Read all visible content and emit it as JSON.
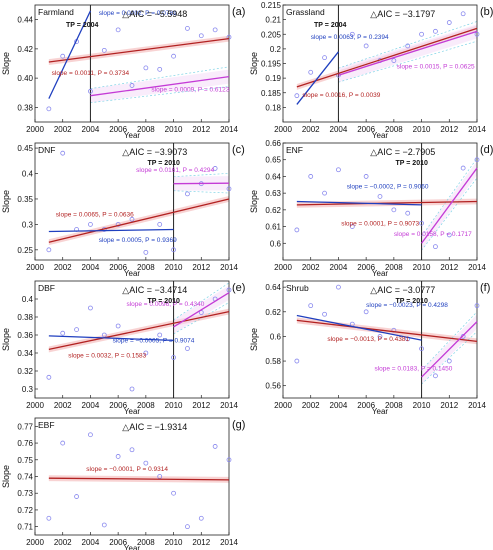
{
  "colors": {
    "fit": "#b22222",
    "ci": "#f4b6b6",
    "pre": "#1f3fbf",
    "post": "#c43bd6",
    "point": "#8888ee",
    "tp": "#222222",
    "ciDash": "#7fd3e6"
  },
  "chart_data": [
    {
      "panel": "(a)",
      "type": "scatter",
      "title": "Farmland",
      "aic": "△AIC = −5.5948",
      "tp_label": "TP = 2004",
      "tp": 2004,
      "xlabel": "Year",
      "ylabel": "Slope",
      "xlim": [
        2000,
        2014
      ],
      "ylim": [
        0.37,
        0.45
      ],
      "xticks": [
        "2000",
        "2002",
        "2004",
        "2006",
        "2008",
        "2010",
        "2012",
        "2014"
      ],
      "yticks": [
        "0.38",
        "0.40",
        "0.42",
        "0.44"
      ],
      "ytick_vals": [
        0.38,
        0.4,
        0.42,
        0.44
      ],
      "points": [
        [
          2001,
          0.379
        ],
        [
          2002,
          0.415
        ],
        [
          2003,
          0.425
        ],
        [
          2004,
          0.391
        ],
        [
          2005,
          0.419
        ],
        [
          2006,
          0.433
        ],
        [
          2007,
          0.395
        ],
        [
          2008,
          0.407
        ],
        [
          2009,
          0.406
        ],
        [
          2010,
          0.415
        ],
        [
          2011,
          0.434
        ],
        [
          2012,
          0.429
        ],
        [
          2013,
          0.433
        ],
        [
          2014,
          0.428
        ]
      ],
      "fit": {
        "x": [
          2001,
          2014
        ],
        "y": [
          0.411,
          0.427
        ],
        "label": "slope = 0.0011, P = 0.3734"
      },
      "pre": {
        "x": [
          2001,
          2004
        ],
        "y": [
          0.386,
          0.446
        ],
        "label": "slope = 0.0202, P = 0.0781"
      },
      "post": {
        "x": [
          2004,
          2014
        ],
        "y": [
          0.388,
          0.401
        ],
        "label": "slope = 0.0009, P = 0.6123"
      }
    },
    {
      "panel": "(b)",
      "type": "scatter",
      "title": "Grassland",
      "aic": "△AIC = −3.1797",
      "tp_label": "TP = 2004",
      "tp": 2004,
      "xlabel": "Year",
      "ylabel": "Slope",
      "xlim": [
        2000,
        2014
      ],
      "ylim": [
        0.175,
        0.215
      ],
      "xticks": [
        "2000",
        "2002",
        "2004",
        "2006",
        "2008",
        "2010",
        "2012",
        "2014"
      ],
      "yticks": [
        "0.18",
        "0.185",
        "0.19",
        "0.195",
        "0.2",
        "0.205",
        "0.21",
        "0.215"
      ],
      "ytick_vals": [
        0.18,
        0.185,
        0.19,
        0.195,
        0.2,
        0.205,
        0.21,
        0.215
      ],
      "points": [
        [
          2001,
          0.184
        ],
        [
          2002,
          0.192
        ],
        [
          2003,
          0.197
        ],
        [
          2004,
          0.191
        ],
        [
          2005,
          0.205
        ],
        [
          2006,
          0.201
        ],
        [
          2007,
          0.196
        ],
        [
          2008,
          0.196
        ],
        [
          2009,
          0.201
        ],
        [
          2010,
          0.205
        ],
        [
          2011,
          0.206
        ],
        [
          2012,
          0.209
        ],
        [
          2013,
          0.212
        ],
        [
          2014,
          0.205
        ]
      ],
      "fit": {
        "x": [
          2001,
          2014
        ],
        "y": [
          0.187,
          0.207
        ],
        "label": "slope = 0.0016, P = 0.0039"
      },
      "pre": {
        "x": [
          2001,
          2004
        ],
        "y": [
          0.181,
          0.199
        ],
        "label": "slope = 0.0063, P = 0.2394"
      },
      "post": {
        "x": [
          2004,
          2014
        ],
        "y": [
          0.191,
          0.206
        ],
        "label": "slope = 0.0015, P = 0.0625"
      }
    },
    {
      "panel": "(c)",
      "type": "scatter",
      "title": "DNF",
      "aic": "△AIC = −3.9073",
      "tp_label": "TP = 2010",
      "tp": 2010,
      "xlabel": "Year",
      "ylabel": "Slope",
      "xlim": [
        2000,
        2014
      ],
      "ylim": [
        0.23,
        0.46
      ],
      "xticks": [
        "2000",
        "2002",
        "2004",
        "2006",
        "2008",
        "2010",
        "2012",
        "2014"
      ],
      "yticks": [
        "0.25",
        "0.3",
        "0.35",
        "0.4",
        "0.45"
      ],
      "ytick_vals": [
        0.25,
        0.3,
        0.35,
        0.4,
        0.45
      ],
      "points": [
        [
          2001,
          0.25
        ],
        [
          2002,
          0.44
        ],
        [
          2003,
          0.29
        ],
        [
          2004,
          0.3
        ],
        [
          2005,
          0.29
        ],
        [
          2006,
          0.3
        ],
        [
          2007,
          0.31
        ],
        [
          2008,
          0.245
        ],
        [
          2009,
          0.3
        ],
        [
          2010,
          0.25
        ],
        [
          2011,
          0.36
        ],
        [
          2012,
          0.38
        ],
        [
          2013,
          0.41
        ],
        [
          2014,
          0.37
        ]
      ],
      "fit": {
        "x": [
          2001,
          2014
        ],
        "y": [
          0.265,
          0.35
        ],
        "label": "slope = 0.0065, P = 0.0636"
      },
      "pre": {
        "x": [
          2001,
          2010
        ],
        "y": [
          0.286,
          0.29
        ],
        "label": "slope = 0.0005, P = 0.9369"
      },
      "post": {
        "x": [
          2010,
          2014
        ],
        "y": [
          0.38,
          0.381
        ],
        "label": "slope = 0.0161, P = 0.4294"
      }
    },
    {
      "panel": "(d)",
      "type": "scatter",
      "title": "ENF",
      "aic": "△AIC = −2.7905",
      "tp_label": "TP = 2010",
      "tp": 2010,
      "xlabel": "Year",
      "ylabel": "Slope",
      "xlim": [
        2000,
        2014
      ],
      "ylim": [
        0.59,
        0.66
      ],
      "xticks": [
        "2000",
        "2002",
        "2004",
        "2006",
        "2008",
        "2010",
        "2012",
        "2014"
      ],
      "yticks": [
        "0.6",
        "0.61",
        "0.62",
        "0.63",
        "0.64",
        "0.65",
        "0.66"
      ],
      "ytick_vals": [
        0.6,
        0.61,
        0.62,
        0.63,
        0.64,
        0.65,
        0.66
      ],
      "points": [
        [
          2001,
          0.608
        ],
        [
          2002,
          0.64
        ],
        [
          2003,
          0.63
        ],
        [
          2004,
          0.644
        ],
        [
          2005,
          0.61
        ],
        [
          2006,
          0.64
        ],
        [
          2007,
          0.628
        ],
        [
          2008,
          0.62
        ],
        [
          2009,
          0.618
        ],
        [
          2010,
          0.612
        ],
        [
          2011,
          0.598
        ],
        [
          2012,
          0.605
        ],
        [
          2013,
          0.645
        ],
        [
          2014,
          0.65
        ]
      ],
      "fit": {
        "x": [
          2001,
          2014
        ],
        "y": [
          0.623,
          0.625
        ],
        "label": "slope = 0.0001, P = 0.9073"
      },
      "pre": {
        "x": [
          2001,
          2010
        ],
        "y": [
          0.625,
          0.623
        ],
        "label": "slope = −0.0002, P = 0.9060"
      },
      "post": {
        "x": [
          2010,
          2014
        ],
        "y": [
          0.6,
          0.645
        ],
        "label": "slope = 0.0158, P = 0.1717"
      }
    },
    {
      "panel": "(e)",
      "type": "scatter",
      "title": "DBF",
      "aic": "△AIC = −3.4714",
      "tp_label": "TP = 2010",
      "tp": 2010,
      "xlabel": "Year",
      "ylabel": "Slope",
      "xlim": [
        2000,
        2014
      ],
      "ylim": [
        0.29,
        0.42
      ],
      "xticks": [
        "2000",
        "2002",
        "2004",
        "2006",
        "2008",
        "2010",
        "2012",
        "2014"
      ],
      "yticks": [
        "0.3",
        "0.32",
        "0.34",
        "0.36",
        "0.38",
        "0.4"
      ],
      "ytick_vals": [
        0.3,
        0.32,
        0.34,
        0.36,
        0.38,
        0.4
      ],
      "points": [
        [
          2001,
          0.313
        ],
        [
          2002,
          0.362
        ],
        [
          2003,
          0.366
        ],
        [
          2004,
          0.39
        ],
        [
          2005,
          0.36
        ],
        [
          2006,
          0.37
        ],
        [
          2007,
          0.3
        ],
        [
          2008,
          0.34
        ],
        [
          2009,
          0.36
        ],
        [
          2010,
          0.335
        ],
        [
          2011,
          0.345
        ],
        [
          2012,
          0.385
        ],
        [
          2013,
          0.4
        ],
        [
          2014,
          0.41
        ]
      ],
      "fit": {
        "x": [
          2001,
          2014
        ],
        "y": [
          0.344,
          0.386
        ],
        "label": "slope = 0.0032, P = 0.1583"
      },
      "pre": {
        "x": [
          2001,
          2010
        ],
        "y": [
          0.359,
          0.354
        ],
        "label": "slope = −0.0005, P = 0.9074"
      },
      "post": {
        "x": [
          2010,
          2014
        ],
        "y": [
          0.369,
          0.407
        ],
        "label": "slope = 0.0096, P = 0.4340"
      }
    },
    {
      "panel": "(f)",
      "type": "scatter",
      "title": "Shrub",
      "aic": "△AIC = −3.0777",
      "tp_label": "TP = 2010",
      "tp": 2010,
      "xlabel": "Year",
      "ylabel": "Slope",
      "xlim": [
        2000,
        2014
      ],
      "ylim": [
        0.55,
        0.645
      ],
      "xticks": [
        "2000",
        "2002",
        "2004",
        "2006",
        "2008",
        "2010",
        "2012",
        "2014"
      ],
      "yticks": [
        "0.56",
        "0.58",
        "0.6",
        "0.62",
        "0.64"
      ],
      "ytick_vals": [
        0.56,
        0.58,
        0.6,
        0.62,
        0.64
      ],
      "points": [
        [
          2001,
          0.58
        ],
        [
          2002,
          0.625
        ],
        [
          2003,
          0.618
        ],
        [
          2004,
          0.64
        ],
        [
          2005,
          0.61
        ],
        [
          2006,
          0.62
        ],
        [
          2007,
          0.6
        ],
        [
          2008,
          0.605
        ],
        [
          2009,
          0.598
        ],
        [
          2010,
          0.59
        ],
        [
          2011,
          0.568
        ],
        [
          2012,
          0.58
        ],
        [
          2013,
          0.6
        ],
        [
          2014,
          0.625
        ]
      ],
      "fit": {
        "x": [
          2001,
          2014
        ],
        "y": [
          0.613,
          0.596
        ],
        "label": "slope = −0.0013, P = 0.4381"
      },
      "pre": {
        "x": [
          2001,
          2010
        ],
        "y": [
          0.617,
          0.597
        ],
        "label": "slope = −0.0023, P = 0.4298"
      },
      "post": {
        "x": [
          2010,
          2014
        ],
        "y": [
          0.567,
          0.612
        ],
        "label": "slope = 0.0183, P = 0.1450"
      }
    },
    {
      "panel": "(g)",
      "type": "scatter",
      "title": "EBF",
      "aic": "△AIC = −1.9314",
      "tp_label": "",
      "tp": null,
      "xlabel": "Year",
      "ylabel": "Slope",
      "xlim": [
        2000,
        2014
      ],
      "ylim": [
        0.705,
        0.775
      ],
      "xticks": [
        "2000",
        "2002",
        "2004",
        "2006",
        "2008",
        "2010",
        "2012",
        "2014"
      ],
      "yticks": [
        "0.71",
        "0.72",
        "0.73",
        "0.74",
        "0.75",
        "0.76",
        "0.77"
      ],
      "ytick_vals": [
        0.71,
        0.72,
        0.73,
        0.74,
        0.75,
        0.76,
        0.77
      ],
      "points": [
        [
          2001,
          0.715
        ],
        [
          2002,
          0.76
        ],
        [
          2003,
          0.728
        ],
        [
          2004,
          0.765
        ],
        [
          2005,
          0.711
        ],
        [
          2006,
          0.752
        ],
        [
          2007,
          0.756
        ],
        [
          2008,
          0.748
        ],
        [
          2009,
          0.74
        ],
        [
          2010,
          0.73
        ],
        [
          2011,
          0.71
        ],
        [
          2012,
          0.715
        ],
        [
          2013,
          0.758
        ],
        [
          2014,
          0.75
        ]
      ],
      "fit": {
        "x": [
          2001,
          2014
        ],
        "y": [
          0.739,
          0.738
        ],
        "label": "slope = −0.0001, P = 0.9314"
      },
      "pre": null,
      "post": null
    }
  ]
}
